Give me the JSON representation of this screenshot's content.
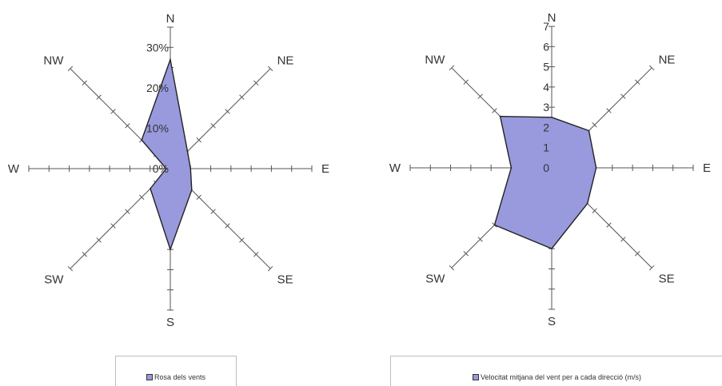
{
  "chart_data": [
    {
      "type": "radar",
      "directions": [
        "N",
        "NE",
        "E",
        "SE",
        "S",
        "SW",
        "W",
        "NW"
      ],
      "tick_labels": [
        "0%",
        "10%",
        "20%",
        "30%"
      ],
      "range": [
        0,
        35
      ],
      "grid_step": 5,
      "label_step": 10,
      "series": [
        {
          "name": "Rosa dels vents",
          "values": [
            27,
            6,
            5,
            7.5,
            20,
            7,
            1,
            10
          ]
        }
      ],
      "legend_position": "bottom",
      "fill_color": "#9999dd",
      "stroke_color": "#222222"
    },
    {
      "type": "radar",
      "directions": [
        "N",
        "NE",
        "E",
        "SE",
        "S",
        "SW",
        "W",
        "NW"
      ],
      "tick_labels": [
        "0",
        "1",
        "2",
        "3",
        "4",
        "5",
        "6",
        "7"
      ],
      "range": [
        0,
        7
      ],
      "grid_step": 1,
      "label_step": 1,
      "series": [
        {
          "name": "Velocitat mitjana del vent per a cada direcció (m/s)",
          "values": [
            2.5,
            2.6,
            2.2,
            2.5,
            4.0,
            4.0,
            2.0,
            3.6
          ]
        }
      ],
      "legend_position": "bottom",
      "fill_color": "#9999dd",
      "stroke_color": "#222222"
    }
  ]
}
